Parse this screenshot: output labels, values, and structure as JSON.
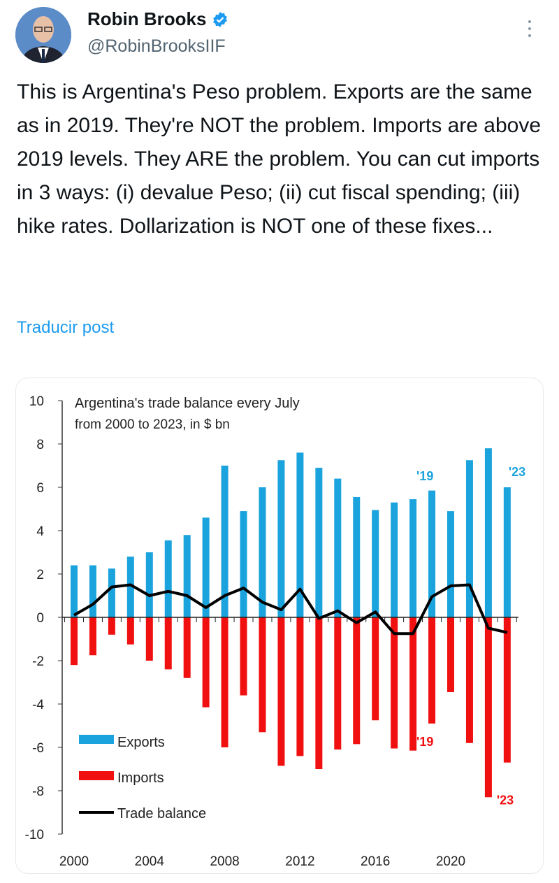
{
  "author": {
    "name": "Robin Brooks",
    "handle": "@RobinBrooksIIF",
    "verified": true
  },
  "post": {
    "text": "This is Argentina's Peso problem. Exports are the same as in 2019. They're NOT the problem. Imports are above 2019 levels. They ARE the problem. You can cut imports in 3 ways: (i) devalue Peso; (ii) cut fiscal spending; (iii) hike rates. Dollarization is NOT one of these fixes...",
    "translate_label": "Traducir post"
  },
  "colors": {
    "exports": "#1aa3dc",
    "imports": "#f01010",
    "balance": "#000000",
    "link": "#1d9bf0"
  },
  "chart_data": {
    "type": "bar",
    "title": "Argentina's trade balance every July",
    "subtitle": "from 2000 to 2023,  in $ bn",
    "x": [
      2000,
      2001,
      2002,
      2003,
      2004,
      2005,
      2006,
      2007,
      2008,
      2009,
      2010,
      2011,
      2012,
      2013,
      2014,
      2015,
      2016,
      2017,
      2018,
      2019,
      2020,
      2021,
      2022,
      2023
    ],
    "x_ticks": [
      "2000",
      "2004",
      "2008",
      "2012",
      "2016",
      "2020"
    ],
    "y_ticks": [
      "10",
      "8",
      "6",
      "4",
      "2",
      "0",
      "-2",
      "-4",
      "-6",
      "-8",
      "-10"
    ],
    "ylim": [
      -10,
      10
    ],
    "series": [
      {
        "name": "Exports",
        "type": "bar",
        "values": [
          2.4,
          2.4,
          2.25,
          2.8,
          3.0,
          3.55,
          3.8,
          4.6,
          7.0,
          4.9,
          6.0,
          7.25,
          7.6,
          6.9,
          6.4,
          5.55,
          4.95,
          5.3,
          5.45,
          5.85,
          4.9,
          7.25,
          7.8,
          6.0
        ]
      },
      {
        "name": "Imports",
        "type": "bar",
        "values": [
          -2.2,
          -1.75,
          -0.8,
          -1.25,
          -2.0,
          -2.4,
          -2.8,
          -4.15,
          -6.0,
          -3.6,
          -5.3,
          -6.85,
          -6.4,
          -7.0,
          -6.1,
          -5.85,
          -4.75,
          -6.05,
          -6.15,
          -4.9,
          -3.45,
          -5.8,
          -8.3,
          -6.7
        ]
      },
      {
        "name": "Trade balance",
        "type": "line",
        "values": [
          0.1,
          0.6,
          1.4,
          1.5,
          1.0,
          1.2,
          1.0,
          0.45,
          1.0,
          1.35,
          0.7,
          0.35,
          1.3,
          -0.05,
          0.3,
          -0.25,
          0.25,
          -0.75,
          -0.75,
          0.95,
          1.45,
          1.5,
          -0.5,
          -0.7
        ]
      }
    ],
    "annotations": [
      {
        "text": "'19",
        "series": "Exports",
        "x": 2019
      },
      {
        "text": "'23",
        "series": "Exports",
        "x": 2023
      },
      {
        "text": "'19",
        "series": "Imports",
        "x": 2019
      },
      {
        "text": "'23",
        "series": "Imports",
        "x": 2023
      }
    ],
    "legend": "bottom-left"
  }
}
